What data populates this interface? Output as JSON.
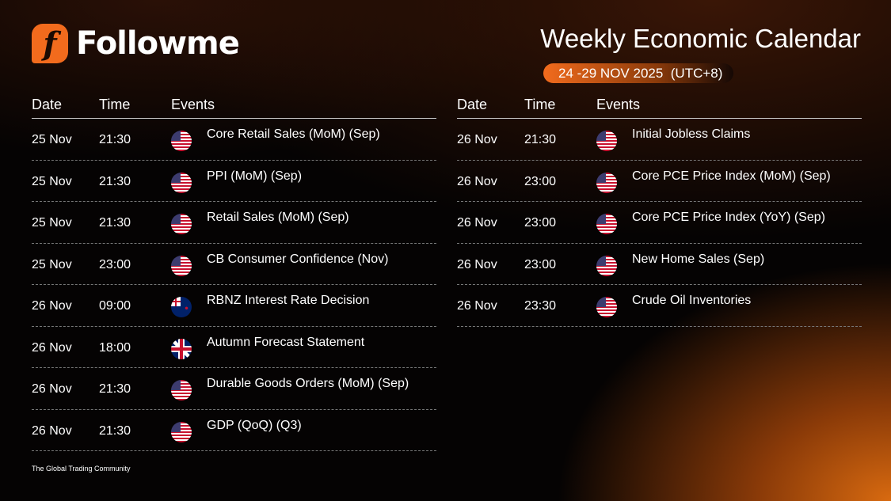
{
  "brand": {
    "name": "Followme",
    "tagline": "The Global Trading Community",
    "color": "#f26b1d"
  },
  "title": "Weekly Economic Calendar",
  "date_range": "24 -29 NOV 2025  (UTC+8)",
  "headers": {
    "date": "Date",
    "time": "Time",
    "events": "Events"
  },
  "left": [
    {
      "date": "25 Nov",
      "time": "21:30",
      "flag": "us",
      "event": "Core Retail Sales (MoM) (Sep)"
    },
    {
      "date": "25 Nov",
      "time": "21:30",
      "flag": "us",
      "event": "PPI (MoM) (Sep)"
    },
    {
      "date": "25 Nov",
      "time": "21:30",
      "flag": "us",
      "event": "Retail Sales (MoM) (Sep)"
    },
    {
      "date": "25 Nov",
      "time": "23:00",
      "flag": "us",
      "event": "CB Consumer Confidence (Nov)"
    },
    {
      "date": "26 Nov",
      "time": "09:00",
      "flag": "nz",
      "event": "RBNZ Interest Rate Decision"
    },
    {
      "date": "26 Nov",
      "time": "18:00",
      "flag": "uk",
      "event": "Autumn Forecast Statement"
    },
    {
      "date": "26 Nov",
      "time": "21:30",
      "flag": "us",
      "event": "Durable Goods Orders (MoM) (Sep)"
    },
    {
      "date": "26 Nov",
      "time": "21:30",
      "flag": "us",
      "event": "GDP (QoQ) (Q3)"
    }
  ],
  "right": [
    {
      "date": "26 Nov",
      "time": "21:30",
      "flag": "us",
      "event": "Initial Jobless Claims"
    },
    {
      "date": "26 Nov",
      "time": "23:00",
      "flag": "us",
      "event": "Core PCE Price Index (MoM) (Sep)"
    },
    {
      "date": "26 Nov",
      "time": "23:00",
      "flag": "us",
      "event": "Core PCE Price Index (YoY) (Sep)"
    },
    {
      "date": "26 Nov",
      "time": "23:00",
      "flag": "us",
      "event": "New Home Sales (Sep)"
    },
    {
      "date": "26 Nov",
      "time": "23:30",
      "flag": "us",
      "event": "Crude Oil Inventories"
    }
  ]
}
